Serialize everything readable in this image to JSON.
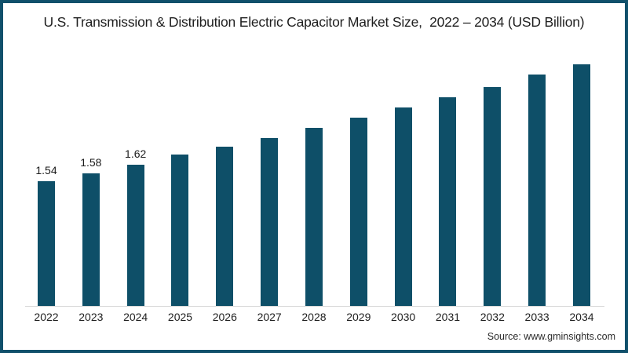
{
  "title": "U.S. Transmission & Distribution Electric Capacitor Market Size,  2022 – 2034 (USD Billion)",
  "source": "Source: www.gminsights.com",
  "colors": {
    "bar": "#0E4F68",
    "frame_border": "#10506B",
    "axis_line": "#D8D8D8",
    "title_text": "#1F1F1F",
    "label_text": "#1A1A1A",
    "source_text": "#2B2B2B"
  },
  "chart_data": {
    "type": "bar",
    "title": "U.S. Transmission & Distribution Electric Capacitor Market Size,  2022 – 2034 (USD Billion)",
    "categories": [
      "2022",
      "2023",
      "2024",
      "2025",
      "2026",
      "2027",
      "2028",
      "2029",
      "2030",
      "2031",
      "2032",
      "2033",
      "2034"
    ],
    "values": [
      1.54,
      1.58,
      1.62,
      1.67,
      1.71,
      1.75,
      1.8,
      1.85,
      1.9,
      1.95,
      2.0,
      2.06,
      2.11
    ],
    "bar_labels": [
      "1.54",
      "1.58",
      "1.62",
      "",
      "",
      "",
      "",
      "",
      "",
      "",
      "",
      "",
      ""
    ],
    "xlabel": "",
    "ylabel": "",
    "units": "USD Billion",
    "ylim": [
      0.934,
      2.194
    ],
    "grid": false,
    "legend": false,
    "y_axis_visible": false,
    "x_axis_baseline_visible": true
  }
}
